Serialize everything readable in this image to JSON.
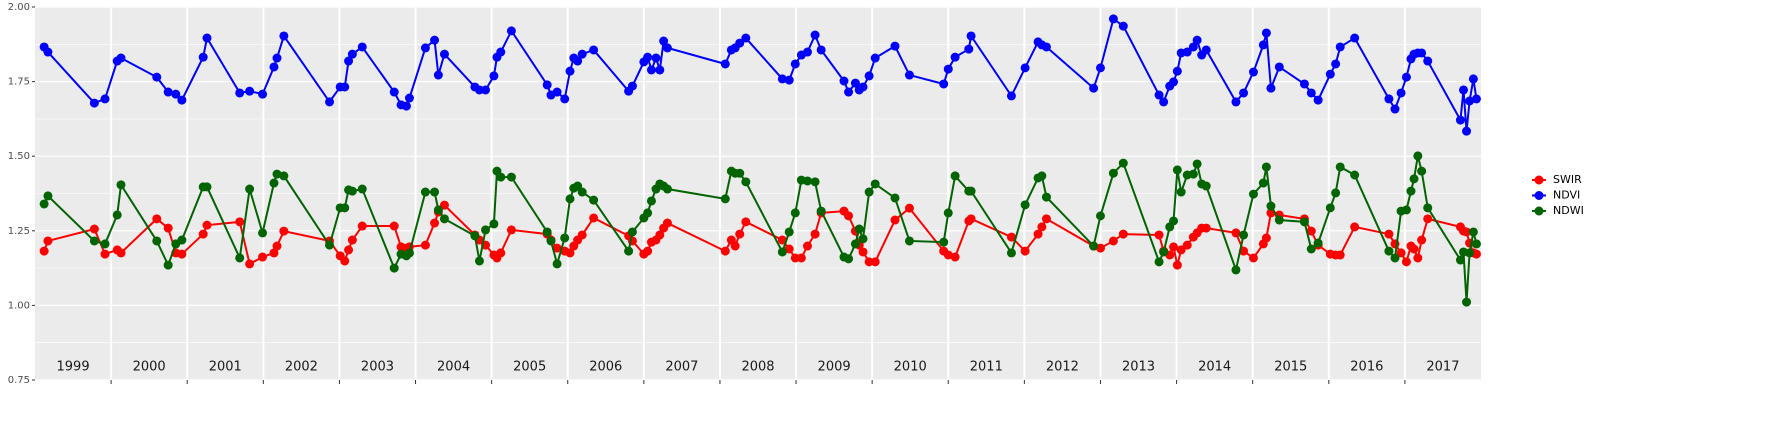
{
  "chart_data": {
    "type": "line",
    "x": [
      1999.12,
      1999.17,
      1999.78,
      1999.92,
      2000.08,
      2000.13,
      2000.6,
      2000.75,
      2000.85,
      2000.93,
      2001.21,
      2001.26,
      2001.69,
      2001.82,
      2001.99,
      2002.14,
      2002.18,
      2002.27,
      2002.87,
      2003.01,
      2003.07,
      2003.12,
      2003.17,
      2003.3,
      2003.72,
      2003.81,
      2003.88,
      2003.92,
      2004.13,
      2004.25,
      2004.3,
      2004.38,
      2004.78,
      2004.84,
      2004.92,
      2005.03,
      2005.07,
      2005.12,
      2005.26,
      2005.73,
      2005.78,
      2005.86,
      2005.96,
      2006.03,
      2006.08,
      2006.13,
      2006.19,
      2006.34,
      2006.8,
      2006.85,
      2007.0,
      2007.05,
      2007.1,
      2007.16,
      2007.21,
      2007.26,
      2007.31,
      2008.07,
      2008.15,
      2008.2,
      2008.26,
      2008.34,
      2008.82,
      2008.91,
      2008.99,
      2009.07,
      2009.15,
      2009.25,
      2009.33,
      2009.63,
      2009.69,
      2009.78,
      2009.83,
      2009.88,
      2009.96,
      2010.04,
      2010.3,
      2010.49,
      2010.94,
      2011.0,
      2011.09,
      2011.27,
      2011.3,
      2011.83,
      2012.01,
      2012.18,
      2012.23,
      2012.29,
      2012.91,
      2013.0,
      2013.17,
      2013.3,
      2013.77,
      2013.83,
      2013.91,
      2013.96,
      2014.01,
      2014.06,
      2014.14,
      2014.22,
      2014.27,
      2014.33,
      2014.39,
      2014.78,
      2014.88,
      2015.01,
      2015.14,
      2015.18,
      2015.24,
      2015.35,
      2015.68,
      2015.77,
      2015.86,
      2016.02,
      2016.09,
      2016.15,
      2016.34,
      2016.79,
      2016.87,
      2016.95,
      2017.02,
      2017.08,
      2017.12,
      2017.17,
      2017.22,
      2017.3,
      2017.73,
      2017.77,
      2017.81,
      2017.85,
      2017.9,
      2017.94
    ],
    "series": [
      {
        "name": "SWIR",
        "color": "#ff0000",
        "values": [
          1.182,
          1.216,
          1.256,
          1.172,
          1.186,
          1.176,
          1.29,
          1.259,
          1.176,
          1.172,
          1.239,
          1.269,
          1.28,
          1.139,
          1.162,
          1.176,
          1.199,
          1.249,
          1.216,
          1.166,
          1.149,
          1.186,
          1.219,
          1.266,
          1.266,
          1.196,
          1.192,
          1.196,
          1.202,
          1.276,
          1.313,
          1.336,
          1.236,
          1.219,
          1.202,
          1.169,
          1.159,
          1.176,
          1.253,
          1.239,
          1.219,
          1.192,
          1.182,
          1.176,
          1.199,
          1.219,
          1.236,
          1.293,
          1.233,
          1.216,
          1.172,
          1.182,
          1.212,
          1.219,
          1.236,
          1.259,
          1.276,
          1.182,
          1.219,
          1.199,
          1.239,
          1.28,
          1.219,
          1.189,
          1.159,
          1.159,
          1.199,
          1.239,
          1.31,
          1.316,
          1.3,
          1.249,
          1.202,
          1.179,
          1.146,
          1.146,
          1.286,
          1.326,
          1.182,
          1.169,
          1.162,
          1.283,
          1.29,
          1.229,
          1.182,
          1.239,
          1.263,
          1.29,
          1.199,
          1.192,
          1.216,
          1.239,
          1.236,
          1.182,
          1.169,
          1.196,
          1.135,
          1.186,
          1.202,
          1.229,
          1.243,
          1.259,
          1.259,
          1.243,
          1.182,
          1.159,
          1.206,
          1.226,
          1.31,
          1.303,
          1.29,
          1.249,
          1.202,
          1.172,
          1.169,
          1.169,
          1.263,
          1.239,
          1.206,
          1.176,
          1.146,
          1.199,
          1.189,
          1.159,
          1.219,
          1.29,
          1.263,
          1.249,
          1.246,
          1.209,
          1.176,
          1.172
        ]
      },
      {
        "name": "NDVI",
        "color": "#0000ff",
        "values": [
          1.866,
          1.849,
          1.678,
          1.692,
          1.819,
          1.829,
          1.765,
          1.715,
          1.708,
          1.688,
          1.832,
          1.896,
          1.712,
          1.718,
          1.708,
          1.799,
          1.829,
          1.903,
          1.682,
          1.732,
          1.732,
          1.819,
          1.842,
          1.866,
          1.715,
          1.672,
          1.668,
          1.695,
          1.863,
          1.889,
          1.772,
          1.842,
          1.732,
          1.722,
          1.722,
          1.769,
          1.832,
          1.849,
          1.92,
          1.739,
          1.705,
          1.715,
          1.692,
          1.785,
          1.829,
          1.819,
          1.842,
          1.856,
          1.718,
          1.735,
          1.816,
          1.832,
          1.789,
          1.829,
          1.789,
          1.886,
          1.863,
          1.809,
          1.856,
          1.863,
          1.879,
          1.896,
          1.759,
          1.755,
          1.809,
          1.839,
          1.849,
          1.906,
          1.856,
          1.752,
          1.715,
          1.745,
          1.722,
          1.732,
          1.769,
          1.829,
          1.869,
          1.772,
          1.742,
          1.792,
          1.832,
          1.859,
          1.903,
          1.702,
          1.796,
          1.883,
          1.873,
          1.866,
          1.728,
          1.796,
          1.96,
          1.936,
          1.705,
          1.682,
          1.735,
          1.749,
          1.785,
          1.846,
          1.849,
          1.866,
          1.889,
          1.839,
          1.856,
          1.682,
          1.712,
          1.782,
          1.873,
          1.913,
          1.728,
          1.799,
          1.742,
          1.712,
          1.688,
          1.775,
          1.809,
          1.866,
          1.896,
          1.692,
          1.658,
          1.712,
          1.765,
          1.826,
          1.842,
          1.846,
          1.846,
          1.819,
          1.621,
          1.722,
          1.584,
          1.685,
          1.759,
          1.692
        ]
      },
      {
        "name": "NDWI",
        "color": "#006400",
        "values": [
          1.34,
          1.367,
          1.216,
          1.206,
          1.303,
          1.404,
          1.216,
          1.135,
          1.206,
          1.219,
          1.397,
          1.397,
          1.159,
          1.39,
          1.243,
          1.41,
          1.44,
          1.434,
          1.202,
          1.327,
          1.327,
          1.387,
          1.383,
          1.39,
          1.125,
          1.172,
          1.166,
          1.176,
          1.38,
          1.38,
          1.32,
          1.29,
          1.233,
          1.149,
          1.253,
          1.273,
          1.45,
          1.43,
          1.43,
          1.246,
          1.216,
          1.139,
          1.226,
          1.357,
          1.393,
          1.4,
          1.38,
          1.353,
          1.182,
          1.246,
          1.293,
          1.31,
          1.35,
          1.39,
          1.407,
          1.4,
          1.39,
          1.357,
          1.45,
          1.443,
          1.443,
          1.414,
          1.179,
          1.246,
          1.31,
          1.42,
          1.417,
          1.414,
          1.316,
          1.162,
          1.156,
          1.206,
          1.256,
          1.223,
          1.38,
          1.407,
          1.36,
          1.216,
          1.212,
          1.31,
          1.434,
          1.383,
          1.383,
          1.176,
          1.337,
          1.427,
          1.434,
          1.363,
          1.199,
          1.3,
          1.443,
          1.477,
          1.146,
          1.179,
          1.263,
          1.283,
          1.454,
          1.38,
          1.437,
          1.44,
          1.474,
          1.407,
          1.4,
          1.119,
          1.236,
          1.373,
          1.41,
          1.464,
          1.333,
          1.286,
          1.28,
          1.189,
          1.209,
          1.327,
          1.377,
          1.464,
          1.437,
          1.182,
          1.159,
          1.316,
          1.32,
          1.383,
          1.424,
          1.501,
          1.45,
          1.327,
          1.152,
          1.179,
          1.011,
          1.176,
          1.246,
          1.206
        ]
      }
    ],
    "xlim": [
      1999,
      2018
    ],
    "xticks": [
      2000,
      2001,
      2002,
      2003,
      2004,
      2005,
      2006,
      2007,
      2008,
      2009,
      2010,
      2011,
      2012,
      2013,
      2014,
      2015,
      2016,
      2017
    ],
    "year_labels": [
      "1999",
      "2000",
      "2001",
      "2002",
      "2003",
      "2004",
      "2005",
      "2006",
      "2007",
      "2008",
      "2009",
      "2010",
      "2011",
      "2012",
      "2013",
      "2014",
      "2015",
      "2016",
      "2017"
    ],
    "ylim": [
      0.75,
      2.0
    ],
    "yticks": [
      0.75,
      {
        "value": 1,
        "label": "1.00"
      },
      1.25,
      {
        "value": 1.5,
        "label": "1.50"
      },
      1.75,
      {
        "value": 2,
        "label": "2.00"
      }
    ],
    "minor_yticks": [
      0.875,
      1.125,
      1.375,
      1.625,
      1.875
    ],
    "grid": true,
    "legend": "right"
  }
}
